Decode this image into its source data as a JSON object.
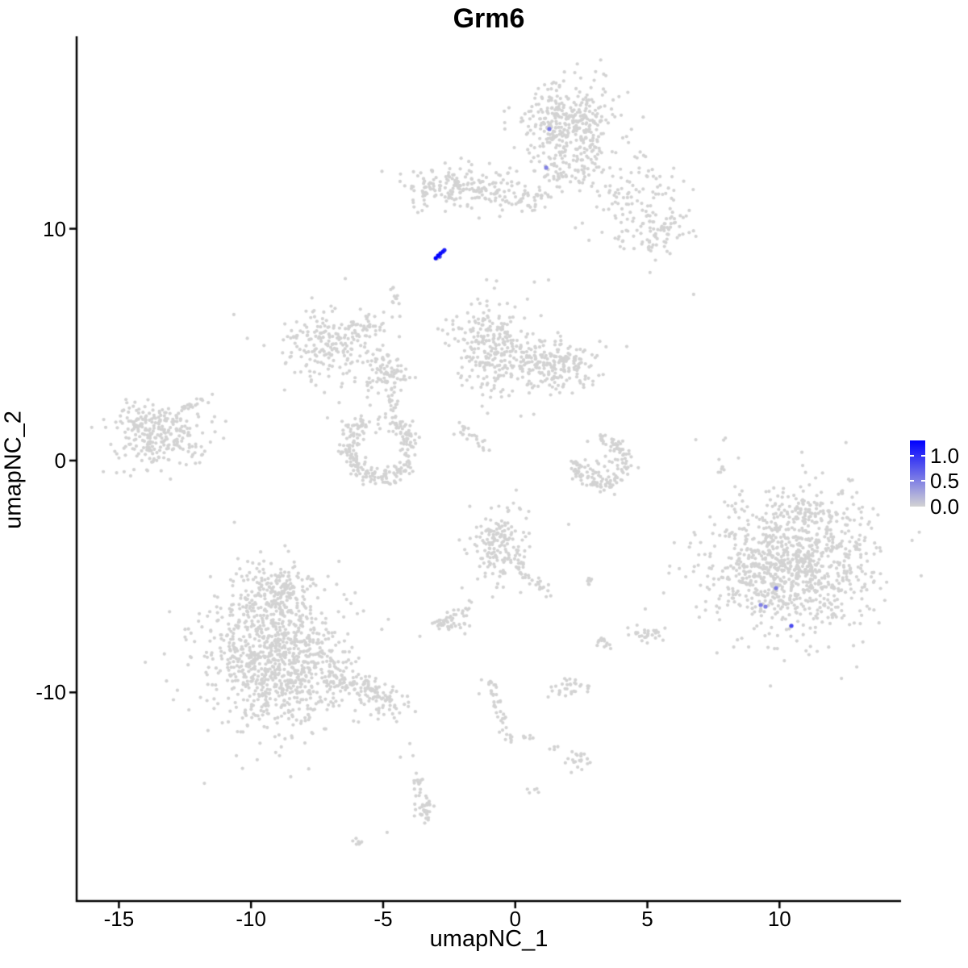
{
  "chart_data": {
    "type": "scatter",
    "title": "Grm6",
    "xlabel": "umapNC_1",
    "ylabel": "umapNC_2",
    "xlim": [
      -16.6,
      14.6
    ],
    "ylim": [
      -19.0,
      18.3
    ],
    "grid": false,
    "legend_position": "right",
    "x_ticks": [
      {
        "value": -15,
        "label": "-15"
      },
      {
        "value": -10,
        "label": "-10"
      },
      {
        "value": -5,
        "label": "-5"
      },
      {
        "value": 0,
        "label": "0"
      },
      {
        "value": 5,
        "label": "5"
      },
      {
        "value": 10,
        "label": "10"
      }
    ],
    "y_ticks": [
      {
        "value": 10,
        "label": "10"
      },
      {
        "value": 0,
        "label": "0"
      },
      {
        "value": -10,
        "label": "-10"
      }
    ],
    "legend": {
      "max": 1.3,
      "ticks": [
        {
          "value": 1.0,
          "label": "1.0"
        },
        {
          "value": 0.5,
          "label": "0.5"
        },
        {
          "value": 0.0,
          "label": "0.0"
        }
      ]
    },
    "colors": {
      "background": "#FFFFFF",
      "point_gray": "#D3D3D3",
      "expression_high": "#0000FF",
      "axis": "#000000"
    },
    "point_radius_px": 2.1,
    "highlight_radius_px": 2.6,
    "background_points": {
      "clusters": [
        {
          "type": "gauss",
          "cx": 2.02,
          "cy": 14.47,
          "sx": 0.85,
          "sy": 0.92,
          "n": 380
        },
        {
          "type": "gauss",
          "cx": 1.87,
          "cy": 12.4,
          "sx": 0.58,
          "sy": 0.4,
          "n": 55
        },
        {
          "type": "gauss",
          "cx": 4.62,
          "cy": 11.52,
          "sx": 1.05,
          "sy": 0.95,
          "n": 110
        },
        {
          "type": "gauss",
          "cx": 5.38,
          "cy": 9.78,
          "sx": 0.66,
          "sy": 0.48,
          "n": 65
        },
        {
          "type": "gauss",
          "cx": -2.04,
          "cy": 11.76,
          "sx": 1.1,
          "sy": 0.44,
          "n": 190
        },
        {
          "type": "gauss",
          "cx": 0.28,
          "cy": 11.27,
          "sx": 0.6,
          "sy": 0.27,
          "n": 50
        },
        {
          "type": "gauss",
          "cx": -4.6,
          "cy": 6.99,
          "sx": 0.12,
          "sy": 0.5,
          "n": 12
        },
        {
          "type": "gauss",
          "cx": -7.23,
          "cy": 5.08,
          "sx": 0.82,
          "sy": 0.84,
          "n": 180
        },
        {
          "type": "gauss",
          "cx": -5.7,
          "cy": 5.67,
          "sx": 0.52,
          "sy": 0.38,
          "n": 40
        },
        {
          "type": "gauss",
          "cx": -4.91,
          "cy": 3.79,
          "sx": 0.46,
          "sy": 0.52,
          "n": 90
        },
        {
          "type": "gauss",
          "cx": -4.57,
          "cy": 2.36,
          "sx": 0.15,
          "sy": 0.45,
          "n": 22
        },
        {
          "type": "gauss",
          "cx": -0.97,
          "cy": 4.97,
          "sx": 0.7,
          "sy": 1.0,
          "n": 260
        },
        {
          "type": "gauss",
          "cx": 1.44,
          "cy": 4.14,
          "sx": 0.82,
          "sy": 0.6,
          "n": 220
        },
        {
          "type": "gauss",
          "cx": -13.55,
          "cy": 1.15,
          "sx": 0.82,
          "sy": 0.7,
          "n": 270
        },
        {
          "type": "gauss",
          "cx": -12.02,
          "cy": 0.21,
          "sx": 0.37,
          "sy": 0.42,
          "n": 10
        },
        {
          "type": "gauss",
          "cx": -0.63,
          "cy": -3.72,
          "sx": 0.58,
          "sy": 0.8,
          "n": 170
        },
        {
          "type": "gauss",
          "cx": 2.82,
          "cy": -5.22,
          "sx": 0.15,
          "sy": 0.1,
          "n": 7
        },
        {
          "type": "gauss",
          "cx": -2.47,
          "cy": -6.99,
          "sx": 0.37,
          "sy": 0.25,
          "n": 45
        },
        {
          "type": "gauss",
          "cx": 4.98,
          "cy": -7.48,
          "sx": 0.34,
          "sy": 0.21,
          "n": 28
        },
        {
          "type": "gauss",
          "cx": 3.34,
          "cy": -7.8,
          "sx": 0.18,
          "sy": 0.14,
          "n": 13
        },
        {
          "type": "gauss",
          "cx": -8.97,
          "cy": -8.6,
          "sx": 1.28,
          "sy": 1.46,
          "n": 850
        },
        {
          "type": "gauss",
          "cx": -9.18,
          "cy": -5.64,
          "sx": 0.73,
          "sy": 0.59,
          "n": 170
        },
        {
          "type": "gauss",
          "cx": -8.97,
          "cy": -8.6,
          "sx": 1.85,
          "sy": 2.0,
          "n": 110
        },
        {
          "type": "gauss",
          "cx": 1.96,
          "cy": -9.88,
          "sx": 0.4,
          "sy": 0.21,
          "n": 30
        },
        {
          "type": "gauss",
          "cx": 2.36,
          "cy": -12.98,
          "sx": 0.28,
          "sy": 0.24,
          "n": 22
        },
        {
          "type": "gauss",
          "cx": 0.59,
          "cy": -14.23,
          "sx": 0.18,
          "sy": 0.1,
          "n": 5
        },
        {
          "type": "gauss",
          "cx": 10.57,
          "cy": -4.49,
          "sx": 1.47,
          "sy": 1.46,
          "n": 800
        },
        {
          "type": "gauss",
          "cx": 10.57,
          "cy": -4.35,
          "sx": 1.95,
          "sy": 1.85,
          "n": 190
        },
        {
          "type": "gauss",
          "cx": 8.59,
          "cy": -5.01,
          "sx": 0.55,
          "sy": 1.05,
          "n": 40
        },
        {
          "type": "gauss",
          "cx": 11.18,
          "cy": -2.23,
          "sx": 0.76,
          "sy": 0.42,
          "n": 55
        },
        {
          "type": "gauss",
          "cx": -3.41,
          "cy": -14.99,
          "sx": 0.21,
          "sy": 0.28,
          "n": 18
        },
        {
          "type": "gauss",
          "cx": -5.46,
          "cy": 1.67,
          "sx": 0.9,
          "sy": 0.33,
          "n": 22
        },
        {
          "type": "gauss",
          "cx": 3.21,
          "cy": -0.3,
          "sx": 0.5,
          "sy": 0.45,
          "n": 25
        },
        {
          "type": "gauss",
          "cx": 1.5,
          "cy": -12.32,
          "sx": 0.12,
          "sy": 0.08,
          "n": 4
        },
        {
          "type": "line",
          "x1": -2.16,
          "y1": 1.53,
          "x2": -0.97,
          "y2": 0.48,
          "t": 0.12,
          "n": 22
        },
        {
          "type": "line",
          "x1": -12.54,
          "y1": 2.19,
          "x2": -11.5,
          "y2": 2.92,
          "t": 0.1,
          "n": 18
        },
        {
          "type": "line",
          "x1": 7.76,
          "y1": -0.59,
          "x2": 8.01,
          "y2": 1.01,
          "t": 0.07,
          "n": 9
        },
        {
          "type": "line",
          "x1": 0.1,
          "y1": -4.56,
          "x2": 1.2,
          "y2": -5.74,
          "t": 0.15,
          "n": 26
        },
        {
          "type": "line",
          "x1": -1.89,
          "y1": -6.47,
          "x2": -1.61,
          "y2": -6.02,
          "t": 0.07,
          "n": 6
        },
        {
          "type": "line",
          "x1": -7.35,
          "y1": -9.08,
          "x2": -4.33,
          "y2": -10.68,
          "t": 0.28,
          "n": 150
        },
        {
          "type": "line",
          "x1": -1.0,
          "y1": -9.43,
          "x2": -0.14,
          "y2": -12.21,
          "t": 0.13,
          "n": 40
        },
        {
          "type": "line",
          "x1": -3.69,
          "y1": -13.6,
          "x2": -3.32,
          "y2": -15.55,
          "t": 0.13,
          "n": 30
        },
        {
          "type": "line",
          "x1": -6.16,
          "y1": -16.32,
          "x2": -5.79,
          "y2": -16.63,
          "t": 0.07,
          "n": 7
        },
        {
          "type": "line",
          "x1": 0.28,
          "y1": -11.9,
          "x2": 0.65,
          "y2": -12.04,
          "t": 0.06,
          "n": 6
        },
        {
          "type": "arc",
          "cx": -5.09,
          "cy": 0.52,
          "rx": 1.16,
          "ry": 1.25,
          "a0": 120,
          "a1": 420,
          "t": 0.16,
          "n": 220
        },
        {
          "type": "arc",
          "cx": 3.21,
          "cy": -0.04,
          "rx": 0.95,
          "ry": 1.0,
          "a0": 180,
          "a1": 450,
          "t": 0.15,
          "n": 130
        },
        {
          "type": "points",
          "pts": [
            [
              -10.65,
              6.3
            ],
            [
              1.26,
              7.79
            ],
            [
              6.75,
              7.17
            ],
            [
              5.1,
              8.11
            ],
            [
              2.79,
              9.5
            ],
            [
              -4.85,
              -16.04
            ],
            [
              -3.99,
              -12.21
            ],
            [
              -3.87,
              -12.73
            ],
            [
              -2.86,
              8.77
            ],
            [
              -2.95,
              8.7
            ],
            [
              -1.37,
              -10.06
            ],
            [
              -4.24,
              3.51
            ],
            [
              -3.78,
              3.58
            ],
            [
              2.02,
              -2.75
            ],
            [
              4.92,
              -6.4
            ],
            [
              4.61,
              -7.1
            ]
          ]
        }
      ]
    },
    "expressing_cells": [
      {
        "x": -2.86,
        "y": 8.8,
        "value": 0.9
      },
      {
        "x": -3.01,
        "y": 8.73,
        "value": 1.3
      },
      {
        "x": -2.92,
        "y": 8.84,
        "value": 1.3
      },
      {
        "x": -2.83,
        "y": 8.94,
        "value": 1.25
      },
      {
        "x": -2.74,
        "y": 9.01,
        "value": 1.2
      },
      {
        "x": -2.68,
        "y": 9.08,
        "value": 1.1
      },
      {
        "x": 1.29,
        "y": 14.3,
        "value": 0.55
      },
      {
        "x": 1.17,
        "y": 12.63,
        "value": 0.5
      },
      {
        "x": 9.87,
        "y": -5.5,
        "value": 0.55
      },
      {
        "x": 9.29,
        "y": -6.23,
        "value": 0.5
      },
      {
        "x": 9.47,
        "y": -6.3,
        "value": 0.5
      },
      {
        "x": 10.45,
        "y": -7.13,
        "value": 0.85
      }
    ]
  }
}
